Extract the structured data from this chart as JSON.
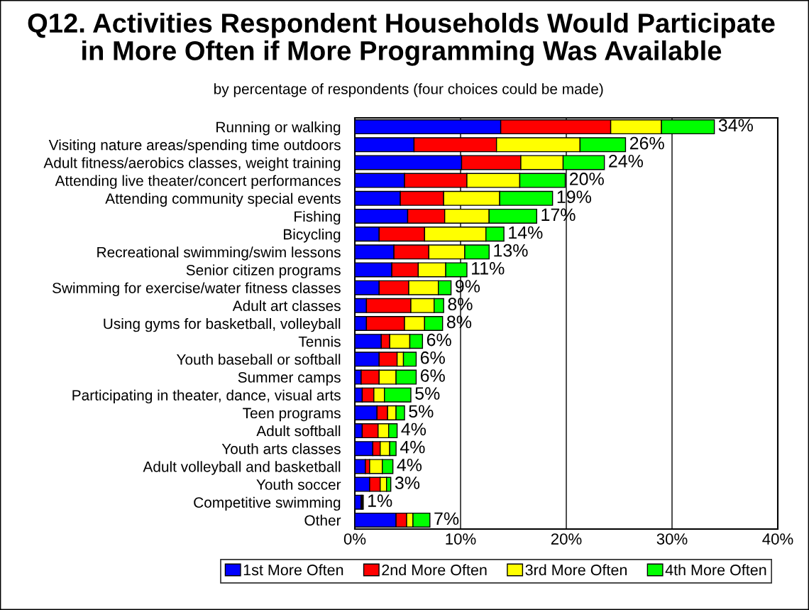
{
  "chart_data": {
    "type": "bar",
    "orientation": "horizontal",
    "stacked": true,
    "title": "Q12. Activities Respondent Households Would Participate\nin More Often if More Programming Was Available",
    "subtitle": "by percentage of respondents (four choices could be made)",
    "categories": [
      "Running or walking",
      "Visiting nature areas/spending time outdoors",
      "Adult fitness/aerobics classes, weight training",
      "Attending live theater/concert performances",
      "Attending community special events",
      "Fishing",
      "Bicycling",
      "Recreational swimming/swim lessons",
      "Senior citizen programs",
      "Swimming for exercise/water fitness classes",
      "Adult art classes",
      "Using gyms for basketball, volleyball",
      "Tennis",
      "Youth baseball or softball",
      "Summer camps",
      "Participating in theater, dance, visual arts",
      "Teen programs",
      "Adult softball",
      "Youth arts classes",
      "Adult volleyball and basketball",
      "Youth soccer",
      "Competitive swimming",
      "Other"
    ],
    "series": [
      {
        "name": "1st More Often",
        "color": "#0000ff",
        "values": [
          13.8,
          5.6,
          10.1,
          4.7,
          4.3,
          5.0,
          2.3,
          3.7,
          3.5,
          2.3,
          1.1,
          1.1,
          2.5,
          2.3,
          0.6,
          0.7,
          2.1,
          0.7,
          1.7,
          1.0,
          1.4,
          0.6,
          3.9
        ]
      },
      {
        "name": "2nd More Often",
        "color": "#ff0000",
        "values": [
          10.4,
          7.8,
          5.6,
          5.9,
          4.1,
          3.5,
          4.3,
          3.3,
          2.5,
          2.8,
          4.2,
          3.6,
          0.8,
          1.7,
          1.7,
          1.1,
          1.0,
          1.5,
          0.7,
          0.4,
          1.0,
          0.1,
          1.0
        ]
      },
      {
        "name": "3rd More Often",
        "color": "#ffff00",
        "values": [
          4.8,
          7.9,
          4.0,
          5.0,
          5.3,
          4.2,
          5.8,
          3.4,
          2.6,
          2.8,
          2.2,
          1.9,
          1.9,
          0.6,
          1.6,
          1.0,
          0.8,
          1.0,
          0.9,
          1.2,
          0.6,
          0.1,
          0.6
        ]
      },
      {
        "name": "4th More Often",
        "color": "#00ff00",
        "values": [
          5.0,
          4.3,
          3.9,
          4.3,
          5.0,
          4.5,
          1.7,
          2.3,
          2.0,
          1.2,
          0.9,
          1.7,
          1.2,
          1.2,
          1.9,
          2.5,
          0.8,
          0.8,
          0.6,
          1.0,
          0.4,
          null,
          1.6
        ]
      }
    ],
    "totals": [
      "34%",
      "26%",
      "24%",
      "20%",
      "19%",
      "17%",
      "14%",
      "13%",
      "11%",
      "9%",
      "8%",
      "8%",
      "6%",
      "6%",
      "6%",
      "5%",
      "5%",
      "4%",
      "4%",
      "4%",
      "3%",
      "1%",
      "7%"
    ],
    "xlim": [
      0,
      40
    ],
    "xticks": [
      {
        "value": 0,
        "label": "0%"
      },
      {
        "value": 10,
        "label": "10%"
      },
      {
        "value": 20,
        "label": "20%"
      },
      {
        "value": 30,
        "label": "30%"
      },
      {
        "value": 40,
        "label": "40%"
      }
    ],
    "grid": "x",
    "legend": "bottom"
  }
}
